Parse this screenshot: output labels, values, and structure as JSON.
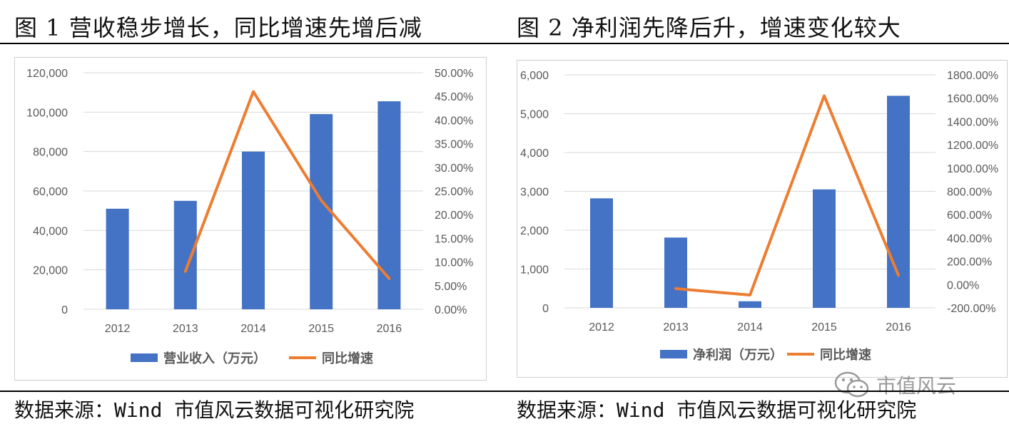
{
  "figure1": {
    "title": "图 1  营收稳步增长，同比增速先增后减",
    "source": "数据来源：Wind   市值风云数据可视化研究院"
  },
  "figure2": {
    "title": "图 2  净利润先降后升，增速变化较大",
    "source": "数据来源：Wind   市值风云数据可视化研究院"
  },
  "watermark": {
    "text": "市值风云",
    "icon": "wechat-icon"
  },
  "colors": {
    "bar": "#4472C4",
    "line": "#ED7D31",
    "grid": "#D9D9D9",
    "axis_text": "#595959"
  },
  "chart_data": [
    {
      "type": "bar",
      "categories": [
        "2012",
        "2013",
        "2014",
        "2015",
        "2016"
      ],
      "series": [
        {
          "name": "营业收入（万元）",
          "kind": "bar",
          "axis": "left",
          "values": [
            51000,
            55000,
            80000,
            99000,
            105500
          ]
        },
        {
          "name": "同比增速",
          "kind": "line",
          "axis": "right",
          "values": [
            null,
            8.0,
            46.0,
            23.0,
            6.5
          ]
        }
      ],
      "left_axis": {
        "min": 0,
        "max": 120000,
        "step": 20000,
        "ticks": [
          "0",
          "20,000",
          "40,000",
          "60,000",
          "80,000",
          "100,000",
          "120,000"
        ]
      },
      "right_axis": {
        "min": 0,
        "max": 50,
        "step": 5,
        "ticks": [
          "0.00%",
          "5.00%",
          "10.00%",
          "15.00%",
          "20.00%",
          "25.00%",
          "30.00%",
          "35.00%",
          "40.00%",
          "45.00%",
          "50.00%"
        ]
      },
      "legend": [
        "营业收入（万元）",
        "同比增速"
      ],
      "legend_position": "bottom",
      "grid": true
    },
    {
      "type": "bar",
      "categories": [
        "2012",
        "2013",
        "2014",
        "2015",
        "2016"
      ],
      "series": [
        {
          "name": "净利润（万元）",
          "kind": "bar",
          "axis": "left",
          "values": [
            2820,
            1810,
            170,
            3050,
            5460
          ]
        },
        {
          "name": "同比增速",
          "kind": "line",
          "axis": "right",
          "values": [
            null,
            -35.0,
            -90.0,
            1620.0,
            80.0
          ]
        }
      ],
      "left_axis": {
        "min": 0,
        "max": 6000,
        "step": 1000,
        "ticks": [
          "0",
          "1,000",
          "2,000",
          "3,000",
          "4,000",
          "5,000",
          "6,000"
        ]
      },
      "right_axis": {
        "min": -200,
        "max": 1800,
        "step": 200,
        "ticks": [
          "-200.00%",
          "0.00%",
          "200.00%",
          "400.00%",
          "600.00%",
          "800.00%",
          "1000.00%",
          "1200.00%",
          "1400.00%",
          "1600.00%",
          "1800.00%"
        ]
      },
      "legend": [
        "净利润（万元）",
        "同比增速"
      ],
      "legend_position": "bottom",
      "grid": true
    }
  ]
}
